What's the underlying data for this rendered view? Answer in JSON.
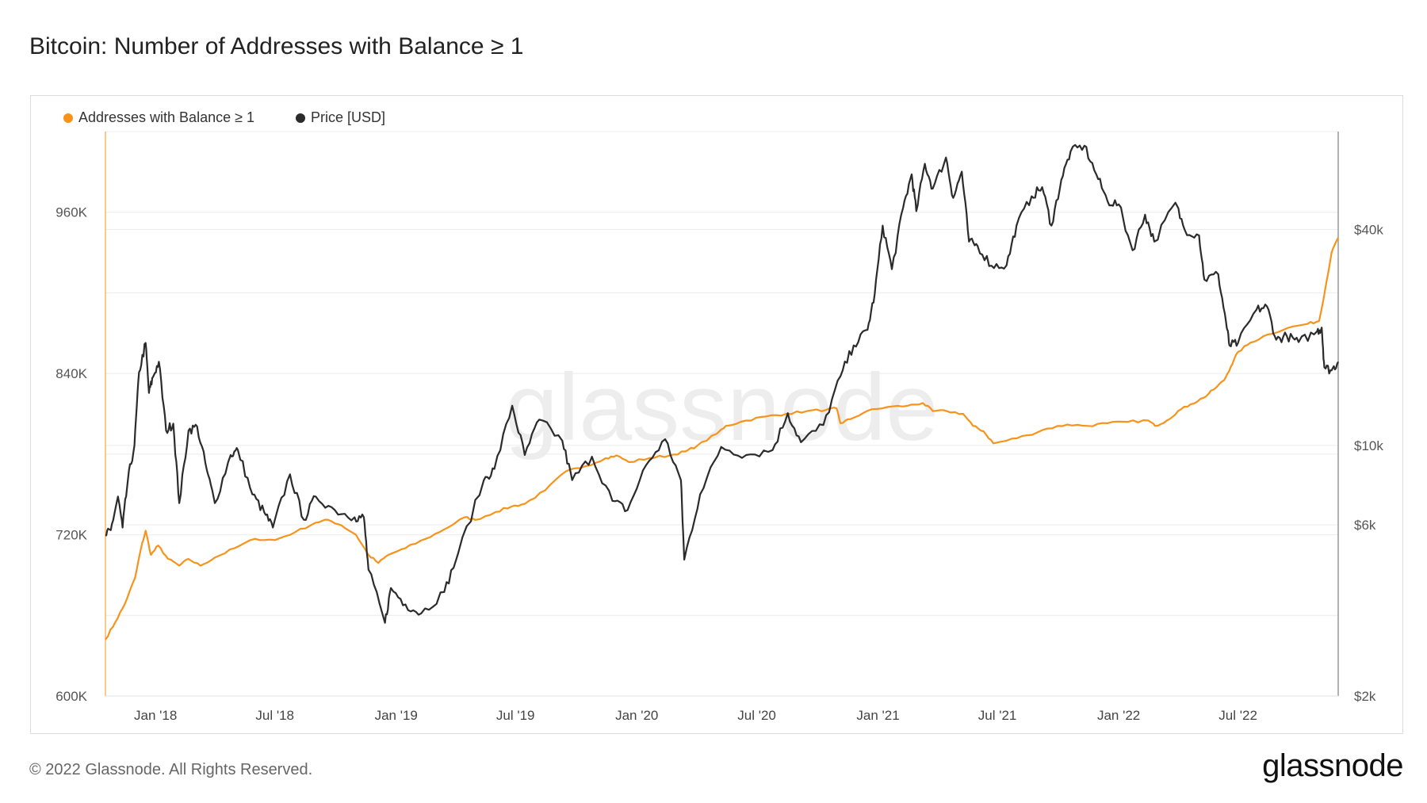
{
  "title": "Bitcoin: Number of Addresses with Balance ≥ 1",
  "footer": "© 2022 Glassnode. All Rights Reserved.",
  "brand": "glassnode",
  "watermark": "glassnode",
  "chart_data": {
    "type": "line",
    "title": "Bitcoin: Number of Addresses with Balance ≥ 1",
    "x_range": [
      "2017-10-17",
      "2022-11-30"
    ],
    "x_ticks": [
      {
        "date": "2018-01-01",
        "label": "Jan '18"
      },
      {
        "date": "2018-07-01",
        "label": "Jul '18"
      },
      {
        "date": "2019-01-01",
        "label": "Jan '19"
      },
      {
        "date": "2019-07-01",
        "label": "Jul '19"
      },
      {
        "date": "2020-01-01",
        "label": "Jan '20"
      },
      {
        "date": "2020-07-01",
        "label": "Jul '20"
      },
      {
        "date": "2021-01-01",
        "label": "Jan '21"
      },
      {
        "date": "2021-07-01",
        "label": "Jul '21"
      },
      {
        "date": "2022-01-01",
        "label": "Jan '22"
      },
      {
        "date": "2022-07-01",
        "label": "Jul '22"
      }
    ],
    "y_left": {
      "range": [
        600000,
        1020000
      ],
      "ticks": [
        {
          "value": 600000,
          "label": "600K"
        },
        {
          "value": 720000,
          "label": "720K"
        },
        {
          "value": 840000,
          "label": "840K"
        },
        {
          "value": 960000,
          "label": "960K"
        }
      ]
    },
    "y_right": {
      "scale": "log",
      "range": [
        2000,
        75000
      ],
      "ticks": [
        {
          "value": 2000,
          "label": "$2k"
        },
        {
          "value": 6000,
          "label": "$6k"
        },
        {
          "value": 10000,
          "label": "$10k"
        },
        {
          "value": 40000,
          "label": "$40k"
        }
      ]
    },
    "grid": true,
    "legend": "top-left",
    "series": [
      {
        "name": "Addresses with Balance ≥ 1",
        "axis": "left",
        "color": "#f7931a",
        "points": [
          [
            "2017-10-17",
            642000
          ],
          [
            "2017-11-01",
            655000
          ],
          [
            "2017-11-15",
            668000
          ],
          [
            "2017-12-01",
            688000
          ],
          [
            "2017-12-10",
            710000
          ],
          [
            "2017-12-17",
            723000
          ],
          [
            "2017-12-25",
            705000
          ],
          [
            "2018-01-05",
            712000
          ],
          [
            "2018-01-20",
            702000
          ],
          [
            "2018-02-06",
            697000
          ],
          [
            "2018-02-20",
            702000
          ],
          [
            "2018-03-10",
            697000
          ],
          [
            "2018-04-01",
            703000
          ],
          [
            "2018-05-01",
            710000
          ],
          [
            "2018-06-01",
            717000
          ],
          [
            "2018-07-01",
            716000
          ],
          [
            "2018-08-01",
            722000
          ],
          [
            "2018-09-01",
            729000
          ],
          [
            "2018-09-20",
            731000
          ],
          [
            "2018-10-10",
            727000
          ],
          [
            "2018-11-01",
            720000
          ],
          [
            "2018-11-20",
            705000
          ],
          [
            "2018-12-05",
            699000
          ],
          [
            "2018-12-20",
            705000
          ],
          [
            "2019-01-15",
            710000
          ],
          [
            "2019-02-15",
            717000
          ],
          [
            "2019-03-15",
            724000
          ],
          [
            "2019-04-15",
            733000
          ],
          [
            "2019-05-01",
            731000
          ],
          [
            "2019-06-01",
            737000
          ],
          [
            "2019-06-25",
            741000
          ],
          [
            "2019-07-15",
            743000
          ],
          [
            "2019-08-15",
            753000
          ],
          [
            "2019-09-15",
            767000
          ],
          [
            "2019-10-15",
            771000
          ],
          [
            "2019-11-15",
            777000
          ],
          [
            "2019-12-01",
            779000
          ],
          [
            "2019-12-20",
            774000
          ],
          [
            "2020-01-20",
            777000
          ],
          [
            "2020-02-20",
            779000
          ],
          [
            "2020-03-15",
            782000
          ],
          [
            "2020-04-01",
            786000
          ],
          [
            "2020-05-01",
            795000
          ],
          [
            "2020-05-15",
            801000
          ],
          [
            "2020-06-15",
            805000
          ],
          [
            "2020-07-15",
            808000
          ],
          [
            "2020-08-15",
            810000
          ],
          [
            "2020-09-15",
            812000
          ],
          [
            "2020-10-15",
            813000
          ],
          [
            "2020-10-30",
            814000
          ],
          [
            "2020-11-05",
            803000
          ],
          [
            "2020-11-20",
            806000
          ],
          [
            "2020-12-15",
            812000
          ],
          [
            "2021-01-15",
            815000
          ],
          [
            "2021-02-15",
            816000
          ],
          [
            "2021-03-10",
            818000
          ],
          [
            "2021-03-25",
            812000
          ],
          [
            "2021-04-15",
            812000
          ],
          [
            "2021-05-10",
            810000
          ],
          [
            "2021-05-25",
            801000
          ],
          [
            "2021-06-10",
            797000
          ],
          [
            "2021-06-25",
            788000
          ],
          [
            "2021-07-15",
            790000
          ],
          [
            "2021-08-15",
            794000
          ],
          [
            "2021-09-15",
            799000
          ],
          [
            "2021-10-15",
            802000
          ],
          [
            "2021-11-15",
            801000
          ],
          [
            "2021-12-15",
            803000
          ],
          [
            "2022-01-15",
            804000
          ],
          [
            "2022-02-15",
            805000
          ],
          [
            "2022-02-25",
            801000
          ],
          [
            "2022-03-15",
            805000
          ],
          [
            "2022-04-01",
            812000
          ],
          [
            "2022-04-20",
            817000
          ],
          [
            "2022-05-10",
            822000
          ],
          [
            "2022-05-25",
            828000
          ],
          [
            "2022-06-10",
            835000
          ],
          [
            "2022-06-20",
            845000
          ],
          [
            "2022-07-01",
            856000
          ],
          [
            "2022-07-20",
            863000
          ],
          [
            "2022-08-15",
            869000
          ],
          [
            "2022-09-15",
            874000
          ],
          [
            "2022-10-15",
            877000
          ],
          [
            "2022-11-01",
            879000
          ],
          [
            "2022-11-10",
            902000
          ],
          [
            "2022-11-20",
            930000
          ],
          [
            "2022-11-30",
            941000
          ]
        ]
      },
      {
        "name": "Price [USD]",
        "axis": "right",
        "color": "#2b2b2b",
        "points": [
          [
            "2017-10-17",
            5600
          ],
          [
            "2017-10-25",
            5800
          ],
          [
            "2017-11-05",
            7200
          ],
          [
            "2017-11-12",
            5900
          ],
          [
            "2017-11-20",
            8000
          ],
          [
            "2017-11-30",
            10000
          ],
          [
            "2017-12-07",
            16000
          ],
          [
            "2017-12-17",
            19300
          ],
          [
            "2017-12-22",
            14000
          ],
          [
            "2017-12-28",
            15500
          ],
          [
            "2018-01-06",
            17100
          ],
          [
            "2018-01-17",
            11000
          ],
          [
            "2018-01-28",
            11500
          ],
          [
            "2018-02-06",
            6900
          ],
          [
            "2018-02-20",
            11000
          ],
          [
            "2018-03-05",
            11300
          ],
          [
            "2018-03-20",
            8500
          ],
          [
            "2018-04-01",
            6900
          ],
          [
            "2018-04-25",
            9400
          ],
          [
            "2018-05-06",
            9700
          ],
          [
            "2018-05-28",
            7300
          ],
          [
            "2018-06-15",
            6500
          ],
          [
            "2018-06-28",
            5900
          ],
          [
            "2018-07-24",
            8300
          ],
          [
            "2018-08-14",
            6200
          ],
          [
            "2018-09-01",
            7200
          ],
          [
            "2018-09-30",
            6600
          ],
          [
            "2018-10-30",
            6300
          ],
          [
            "2018-11-13",
            6300
          ],
          [
            "2018-11-20",
            4500
          ],
          [
            "2018-12-15",
            3200
          ],
          [
            "2018-12-24",
            4000
          ],
          [
            "2019-01-15",
            3600
          ],
          [
            "2019-02-08",
            3400
          ],
          [
            "2019-03-15",
            3900
          ],
          [
            "2019-04-05",
            5000
          ],
          [
            "2019-05-14",
            8000
          ],
          [
            "2019-05-30",
            8600
          ],
          [
            "2019-06-26",
            12900
          ],
          [
            "2019-07-15",
            9400
          ],
          [
            "2019-08-06",
            11800
          ],
          [
            "2019-09-10",
            10300
          ],
          [
            "2019-09-25",
            8000
          ],
          [
            "2019-10-25",
            9300
          ],
          [
            "2019-11-25",
            7000
          ],
          [
            "2019-12-18",
            6600
          ],
          [
            "2020-01-15",
            8800
          ],
          [
            "2020-02-13",
            10400
          ],
          [
            "2020-03-08",
            8000
          ],
          [
            "2020-03-13",
            4800
          ],
          [
            "2020-04-06",
            7300
          ],
          [
            "2020-05-08",
            9900
          ],
          [
            "2020-06-15",
            9400
          ],
          [
            "2020-07-25",
            9700
          ],
          [
            "2020-08-17",
            12300
          ],
          [
            "2020-09-06",
            10200
          ],
          [
            "2020-10-10",
            11400
          ],
          [
            "2020-11-05",
            15600
          ],
          [
            "2020-11-25",
            19000
          ],
          [
            "2020-12-16",
            21000
          ],
          [
            "2020-12-27",
            26500
          ],
          [
            "2021-01-08",
            41000
          ],
          [
            "2021-01-22",
            31000
          ],
          [
            "2021-02-08",
            46000
          ],
          [
            "2021-02-21",
            57000
          ],
          [
            "2021-02-28",
            45000
          ],
          [
            "2021-03-13",
            61000
          ],
          [
            "2021-03-25",
            52000
          ],
          [
            "2021-04-14",
            63500
          ],
          [
            "2021-04-25",
            49000
          ],
          [
            "2021-05-08",
            58000
          ],
          [
            "2021-05-19",
            37000
          ],
          [
            "2021-06-01",
            36000
          ],
          [
            "2021-06-22",
            31700
          ],
          [
            "2021-07-15",
            31800
          ],
          [
            "2021-07-30",
            41000
          ],
          [
            "2021-08-22",
            49500
          ],
          [
            "2021-09-07",
            52500
          ],
          [
            "2021-09-21",
            41000
          ],
          [
            "2021-10-06",
            55000
          ],
          [
            "2021-10-20",
            66000
          ],
          [
            "2021-11-10",
            68500
          ],
          [
            "2021-11-28",
            57000
          ],
          [
            "2021-12-15",
            48000
          ],
          [
            "2022-01-01",
            47000
          ],
          [
            "2022-01-22",
            35000
          ],
          [
            "2022-02-10",
            44000
          ],
          [
            "2022-02-24",
            37000
          ],
          [
            "2022-03-28",
            47500
          ],
          [
            "2022-04-11",
            40000
          ],
          [
            "2022-05-03",
            38500
          ],
          [
            "2022-05-11",
            29000
          ],
          [
            "2022-06-01",
            30000
          ],
          [
            "2022-06-13",
            22000
          ],
          [
            "2022-06-18",
            19000
          ],
          [
            "2022-07-01",
            19300
          ],
          [
            "2022-07-29",
            23900
          ],
          [
            "2022-08-14",
            24400
          ],
          [
            "2022-08-28",
            19700
          ],
          [
            "2022-09-13",
            20200
          ],
          [
            "2022-10-01",
            19400
          ],
          [
            "2022-10-29",
            20800
          ],
          [
            "2022-11-05",
            21300
          ],
          [
            "2022-11-09",
            16500
          ],
          [
            "2022-11-20",
            16200
          ],
          [
            "2022-11-30",
            17100
          ]
        ]
      }
    ]
  }
}
